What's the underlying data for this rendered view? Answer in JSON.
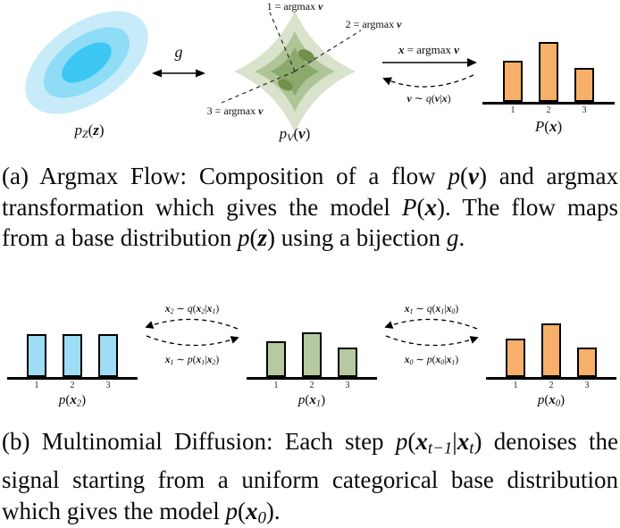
{
  "colors": {
    "ellipse_outer": "#c7ebf9",
    "ellipse_mid": "#8edcf5",
    "ellipse_inner": "#3cc8f2",
    "blob_outer": "#d9e2cb",
    "blob_mid": "#afc497",
    "blob_inner": "#8ba96c",
    "blob_spot": "#72914f",
    "bar_blue": "#9fdcf5",
    "bar_green": "#b7c9a0",
    "bar_orange": "#f7b069"
  },
  "panel_a": {
    "region1": [
      {
        "t": "1 = argmax "
      },
      {
        "t": "v",
        "s": "b"
      }
    ],
    "region2": [
      {
        "t": "2 = argmax "
      },
      {
        "t": "v",
        "s": "b"
      }
    ],
    "region3": [
      {
        "t": "3 = argmax "
      },
      {
        "t": "v",
        "s": "b"
      }
    ],
    "g_label": [
      {
        "t": "g",
        "s": "i"
      }
    ],
    "base_label": [
      {
        "t": "p",
        "s": "i"
      },
      {
        "t": "Z",
        "s": "sub"
      },
      {
        "t": "("
      },
      {
        "t": "z",
        "s": "b"
      },
      {
        "t": ")"
      }
    ],
    "flow_label": [
      {
        "t": "p",
        "s": "i"
      },
      {
        "t": "V",
        "s": "sub"
      },
      {
        "t": "("
      },
      {
        "t": "v",
        "s": "b"
      },
      {
        "t": ")"
      }
    ],
    "argmax_arrow_label": [
      {
        "t": "x",
        "s": "b"
      },
      {
        "t": " = argmax "
      },
      {
        "t": "v",
        "s": "b"
      }
    ],
    "q_arrow_label": [
      {
        "t": "v",
        "s": "b"
      },
      {
        "t": " ∼ "
      },
      {
        "t": "q",
        "s": "i"
      },
      {
        "t": "("
      },
      {
        "t": "v",
        "s": "b"
      },
      {
        "t": "|"
      },
      {
        "t": "x",
        "s": "b"
      },
      {
        "t": ")"
      }
    ],
    "chart": {
      "type": "bar",
      "label": [
        {
          "t": "P",
          "s": "i"
        },
        {
          "t": "("
        },
        {
          "t": "x",
          "s": "b"
        },
        {
          "t": ")"
        }
      ],
      "ticks": [
        "1",
        "2",
        "3"
      ],
      "heights": [
        0.52,
        0.76,
        0.43
      ],
      "color": "#f7b069"
    }
  },
  "caption_a": [
    {
      "t": "(a) Argmax Flow: Composition of a flow "
    },
    {
      "t": "p",
      "s": "i"
    },
    {
      "t": "("
    },
    {
      "t": "v",
      "s": "b"
    },
    {
      "t": ")"
    },
    {
      "t": " and argmax transformation which gives the model "
    },
    {
      "t": "P",
      "s": "i"
    },
    {
      "t": "("
    },
    {
      "t": "x",
      "s": "b"
    },
    {
      "t": ")"
    },
    {
      "t": ". The flow maps from a base distribution "
    },
    {
      "t": "p",
      "s": "i"
    },
    {
      "t": "("
    },
    {
      "t": "z",
      "s": "b"
    },
    {
      "t": ")"
    },
    {
      "t": " using a bijection "
    },
    {
      "t": "g",
      "s": "i"
    },
    {
      "t": "."
    }
  ],
  "panel_b": {
    "charts": [
      {
        "type": "bar",
        "label": [
          {
            "t": "p",
            "s": "i"
          },
          {
            "t": "("
          },
          {
            "t": "x",
            "s": "b"
          },
          {
            "t": "2",
            "s": "sub"
          },
          {
            "t": ")"
          }
        ],
        "ticks": [
          "1",
          "2",
          "3"
        ],
        "heights": [
          0.78,
          0.78,
          0.78
        ],
        "color": "#9fdcf5"
      },
      {
        "type": "bar",
        "label": [
          {
            "t": "p",
            "s": "i"
          },
          {
            "t": "("
          },
          {
            "t": "x",
            "s": "b"
          },
          {
            "t": "1",
            "s": "sub"
          },
          {
            "t": ")"
          }
        ],
        "ticks": [
          "1",
          "2",
          "3"
        ],
        "heights": [
          0.64,
          0.8,
          0.53
        ],
        "color": "#b7c9a0"
      },
      {
        "type": "bar",
        "label": [
          {
            "t": "p",
            "s": "i"
          },
          {
            "t": "("
          },
          {
            "t": "x",
            "s": "b"
          },
          {
            "t": "0",
            "s": "sub"
          },
          {
            "t": ")"
          }
        ],
        "ticks": [
          "1",
          "2",
          "3"
        ],
        "heights": [
          0.7,
          0.97,
          0.53
        ],
        "color": "#f7b069"
      }
    ],
    "transitions": [
      {
        "top": [
          {
            "t": "x",
            "s": "b"
          },
          {
            "t": "2",
            "s": "sub"
          },
          {
            "t": " ∼ "
          },
          {
            "t": "q",
            "s": "i"
          },
          {
            "t": "("
          },
          {
            "t": "x",
            "s": "b"
          },
          {
            "t": "2",
            "s": "sub"
          },
          {
            "t": "|"
          },
          {
            "t": "x",
            "s": "b"
          },
          {
            "t": "1",
            "s": "sub"
          },
          {
            "t": ")"
          }
        ],
        "bottom": [
          {
            "t": "x",
            "s": "b"
          },
          {
            "t": "1",
            "s": "sub"
          },
          {
            "t": " ∼ "
          },
          {
            "t": "p",
            "s": "i"
          },
          {
            "t": "("
          },
          {
            "t": "x",
            "s": "b"
          },
          {
            "t": "1",
            "s": "sub"
          },
          {
            "t": "|"
          },
          {
            "t": "x",
            "s": "b"
          },
          {
            "t": "2",
            "s": "sub"
          },
          {
            "t": ")"
          }
        ]
      },
      {
        "top": [
          {
            "t": "x",
            "s": "b"
          },
          {
            "t": "1",
            "s": "sub"
          },
          {
            "t": " ∼ "
          },
          {
            "t": "q",
            "s": "i"
          },
          {
            "t": "("
          },
          {
            "t": "x",
            "s": "b"
          },
          {
            "t": "1",
            "s": "sub"
          },
          {
            "t": "|"
          },
          {
            "t": "x",
            "s": "b"
          },
          {
            "t": "0",
            "s": "sub"
          },
          {
            "t": ")"
          }
        ],
        "bottom": [
          {
            "t": "x",
            "s": "b"
          },
          {
            "t": "0",
            "s": "sub"
          },
          {
            "t": " ∼ "
          },
          {
            "t": "p",
            "s": "i"
          },
          {
            "t": "("
          },
          {
            "t": "x",
            "s": "b"
          },
          {
            "t": "0",
            "s": "sub"
          },
          {
            "t": "|"
          },
          {
            "t": "x",
            "s": "b"
          },
          {
            "t": "1",
            "s": "sub"
          },
          {
            "t": ")"
          }
        ]
      }
    ]
  },
  "caption_b": [
    {
      "t": "(b) Multinomial Diffusion: Each step "
    },
    {
      "t": "p",
      "s": "i"
    },
    {
      "t": "("
    },
    {
      "t": "x",
      "s": "b"
    },
    {
      "t": "t−1",
      "s": "sub"
    },
    {
      "t": "|"
    },
    {
      "t": "x",
      "s": "b"
    },
    {
      "t": "t",
      "s": "sub"
    },
    {
      "t": ")"
    },
    {
      "t": " denoises the signal starting from a uniform categorical base distribution which gives the model "
    },
    {
      "t": "p",
      "s": "i"
    },
    {
      "t": "("
    },
    {
      "t": "x",
      "s": "b"
    },
    {
      "t": "0",
      "s": "sub"
    },
    {
      "t": ")."
    }
  ]
}
